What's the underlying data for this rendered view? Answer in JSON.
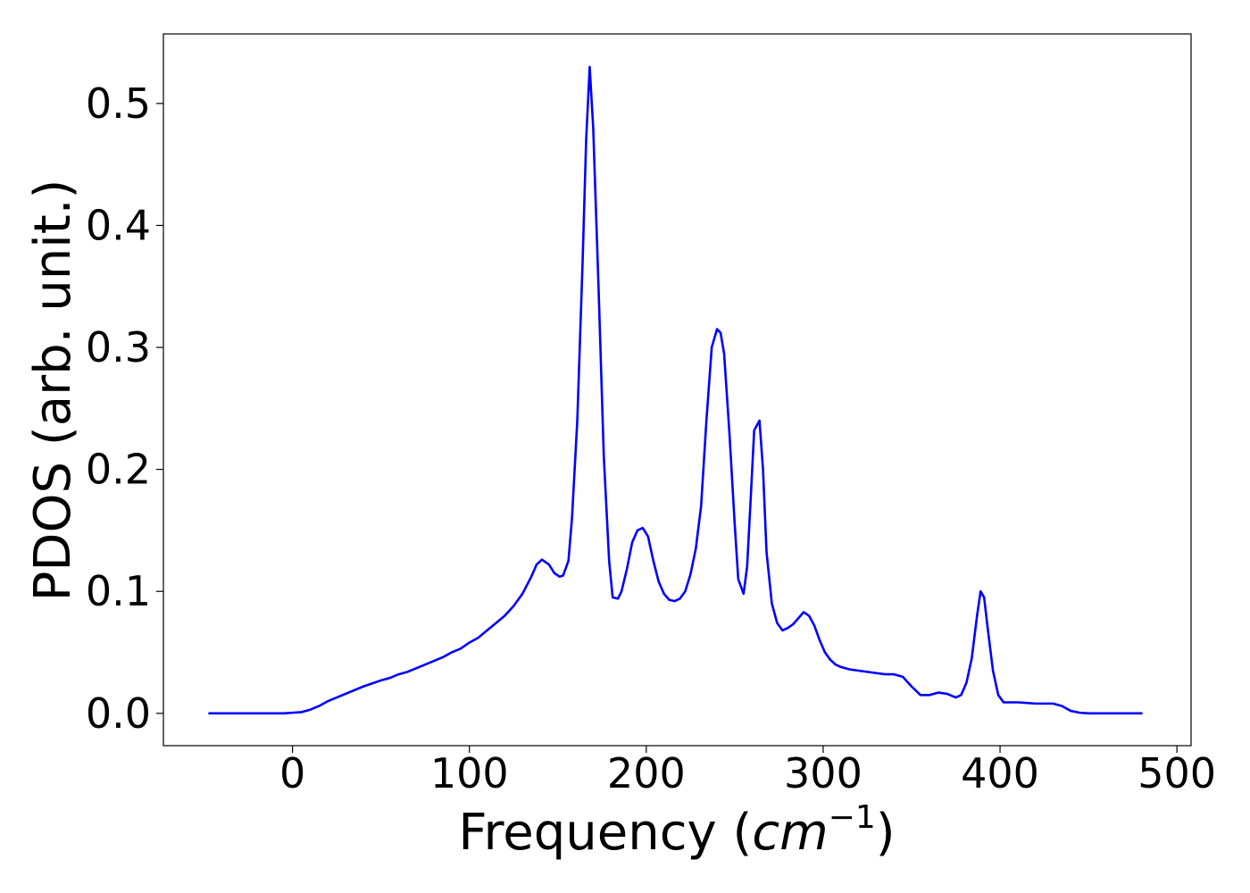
{
  "chart_data": {
    "type": "line",
    "xlabel": "Frequency (cm⁻¹)",
    "xlabel_parts": {
      "prefix": "Frequency (",
      "unit_base": "cm",
      "unit_exp": "−1",
      "suffix": ")"
    },
    "ylabel": "PDOS (arb. unit.)",
    "xlim": [
      -73,
      508
    ],
    "ylim": [
      -0.0265,
      0.557
    ],
    "xticks": [
      0,
      100,
      200,
      300,
      400,
      500
    ],
    "xtick_labels": [
      "0",
      "100",
      "200",
      "300",
      "400",
      "500"
    ],
    "yticks": [
      0.0,
      0.1,
      0.2,
      0.3,
      0.4,
      0.5
    ],
    "ytick_labels": [
      "0.0",
      "0.1",
      "0.2",
      "0.3",
      "0.4",
      "0.5"
    ],
    "grid": false,
    "series": [
      {
        "color": "#0000ff",
        "x": [
          -47,
          -20,
          -5,
          0,
          5,
          10,
          15,
          20,
          25,
          30,
          40,
          50,
          55,
          60,
          65,
          70,
          75,
          80,
          85,
          90,
          95,
          100,
          105,
          110,
          115,
          120,
          125,
          130,
          135,
          138,
          141,
          145,
          148,
          151,
          153,
          156,
          158,
          161,
          164,
          166,
          168,
          170,
          173,
          176,
          179,
          181,
          184,
          186,
          189,
          192,
          195,
          198,
          201,
          204,
          207,
          210,
          213,
          216,
          219,
          222,
          225,
          228,
          231,
          234,
          237,
          240,
          242,
          244,
          247,
          250,
          252,
          255,
          257,
          259,
          261,
          264,
          266,
          268,
          271,
          274,
          277,
          280,
          283,
          286,
          289,
          292,
          295,
          298,
          301,
          304,
          307,
          310,
          315,
          320,
          325,
          330,
          335,
          340,
          345,
          350,
          355,
          360,
          365,
          370,
          375,
          378,
          381,
          384,
          387,
          389,
          391,
          393,
          396,
          399,
          402,
          405,
          410,
          420,
          430,
          435,
          440,
          445,
          450,
          460,
          470,
          480
        ],
        "y": [
          0.0,
          0.0,
          0.0,
          0.0005,
          0.001,
          0.003,
          0.006,
          0.01,
          0.013,
          0.016,
          0.022,
          0.027,
          0.029,
          0.032,
          0.034,
          0.037,
          0.04,
          0.043,
          0.046,
          0.05,
          0.053,
          0.058,
          0.062,
          0.068,
          0.074,
          0.08,
          0.088,
          0.098,
          0.112,
          0.122,
          0.126,
          0.122,
          0.115,
          0.112,
          0.113,
          0.125,
          0.16,
          0.24,
          0.37,
          0.47,
          0.53,
          0.48,
          0.35,
          0.21,
          0.125,
          0.095,
          0.094,
          0.1,
          0.118,
          0.14,
          0.15,
          0.152,
          0.145,
          0.125,
          0.108,
          0.098,
          0.093,
          0.092,
          0.094,
          0.1,
          0.114,
          0.135,
          0.17,
          0.24,
          0.3,
          0.315,
          0.312,
          0.295,
          0.23,
          0.155,
          0.11,
          0.098,
          0.12,
          0.175,
          0.232,
          0.24,
          0.2,
          0.132,
          0.09,
          0.074,
          0.068,
          0.07,
          0.073,
          0.078,
          0.083,
          0.08,
          0.072,
          0.06,
          0.05,
          0.044,
          0.04,
          0.038,
          0.036,
          0.035,
          0.034,
          0.033,
          0.032,
          0.032,
          0.03,
          0.022,
          0.015,
          0.015,
          0.017,
          0.016,
          0.013,
          0.015,
          0.025,
          0.045,
          0.08,
          0.1,
          0.095,
          0.07,
          0.035,
          0.015,
          0.009,
          0.009,
          0.009,
          0.008,
          0.008,
          0.006,
          0.002,
          0.0005,
          0.0,
          0.0,
          0.0,
          0.0
        ]
      }
    ]
  }
}
